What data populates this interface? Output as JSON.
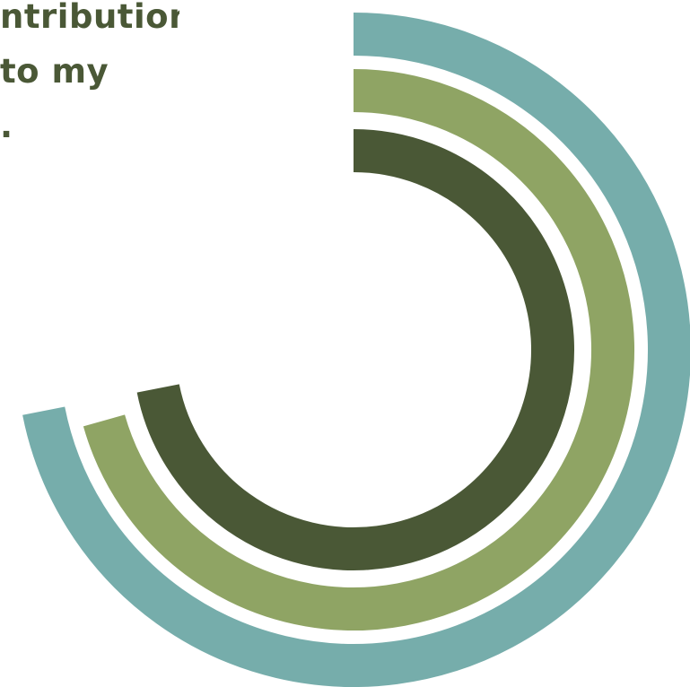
{
  "chart_data": {
    "type": "radial-bar",
    "title_lines": [
      "ntribution",
      "to my",
      "."
    ],
    "series": [
      {
        "value": 71.9,
        "unit": "% of circle",
        "color": "#76adab"
      },
      {
        "value": 70.6,
        "unit": "% of circle",
        "color": "#8fa464"
      },
      {
        "value": 71.9,
        "unit": "% of circle",
        "color": "#4a5836"
      }
    ],
    "start": "12 o'clock",
    "direction": "clockwise",
    "legend": "none",
    "grid": false
  }
}
